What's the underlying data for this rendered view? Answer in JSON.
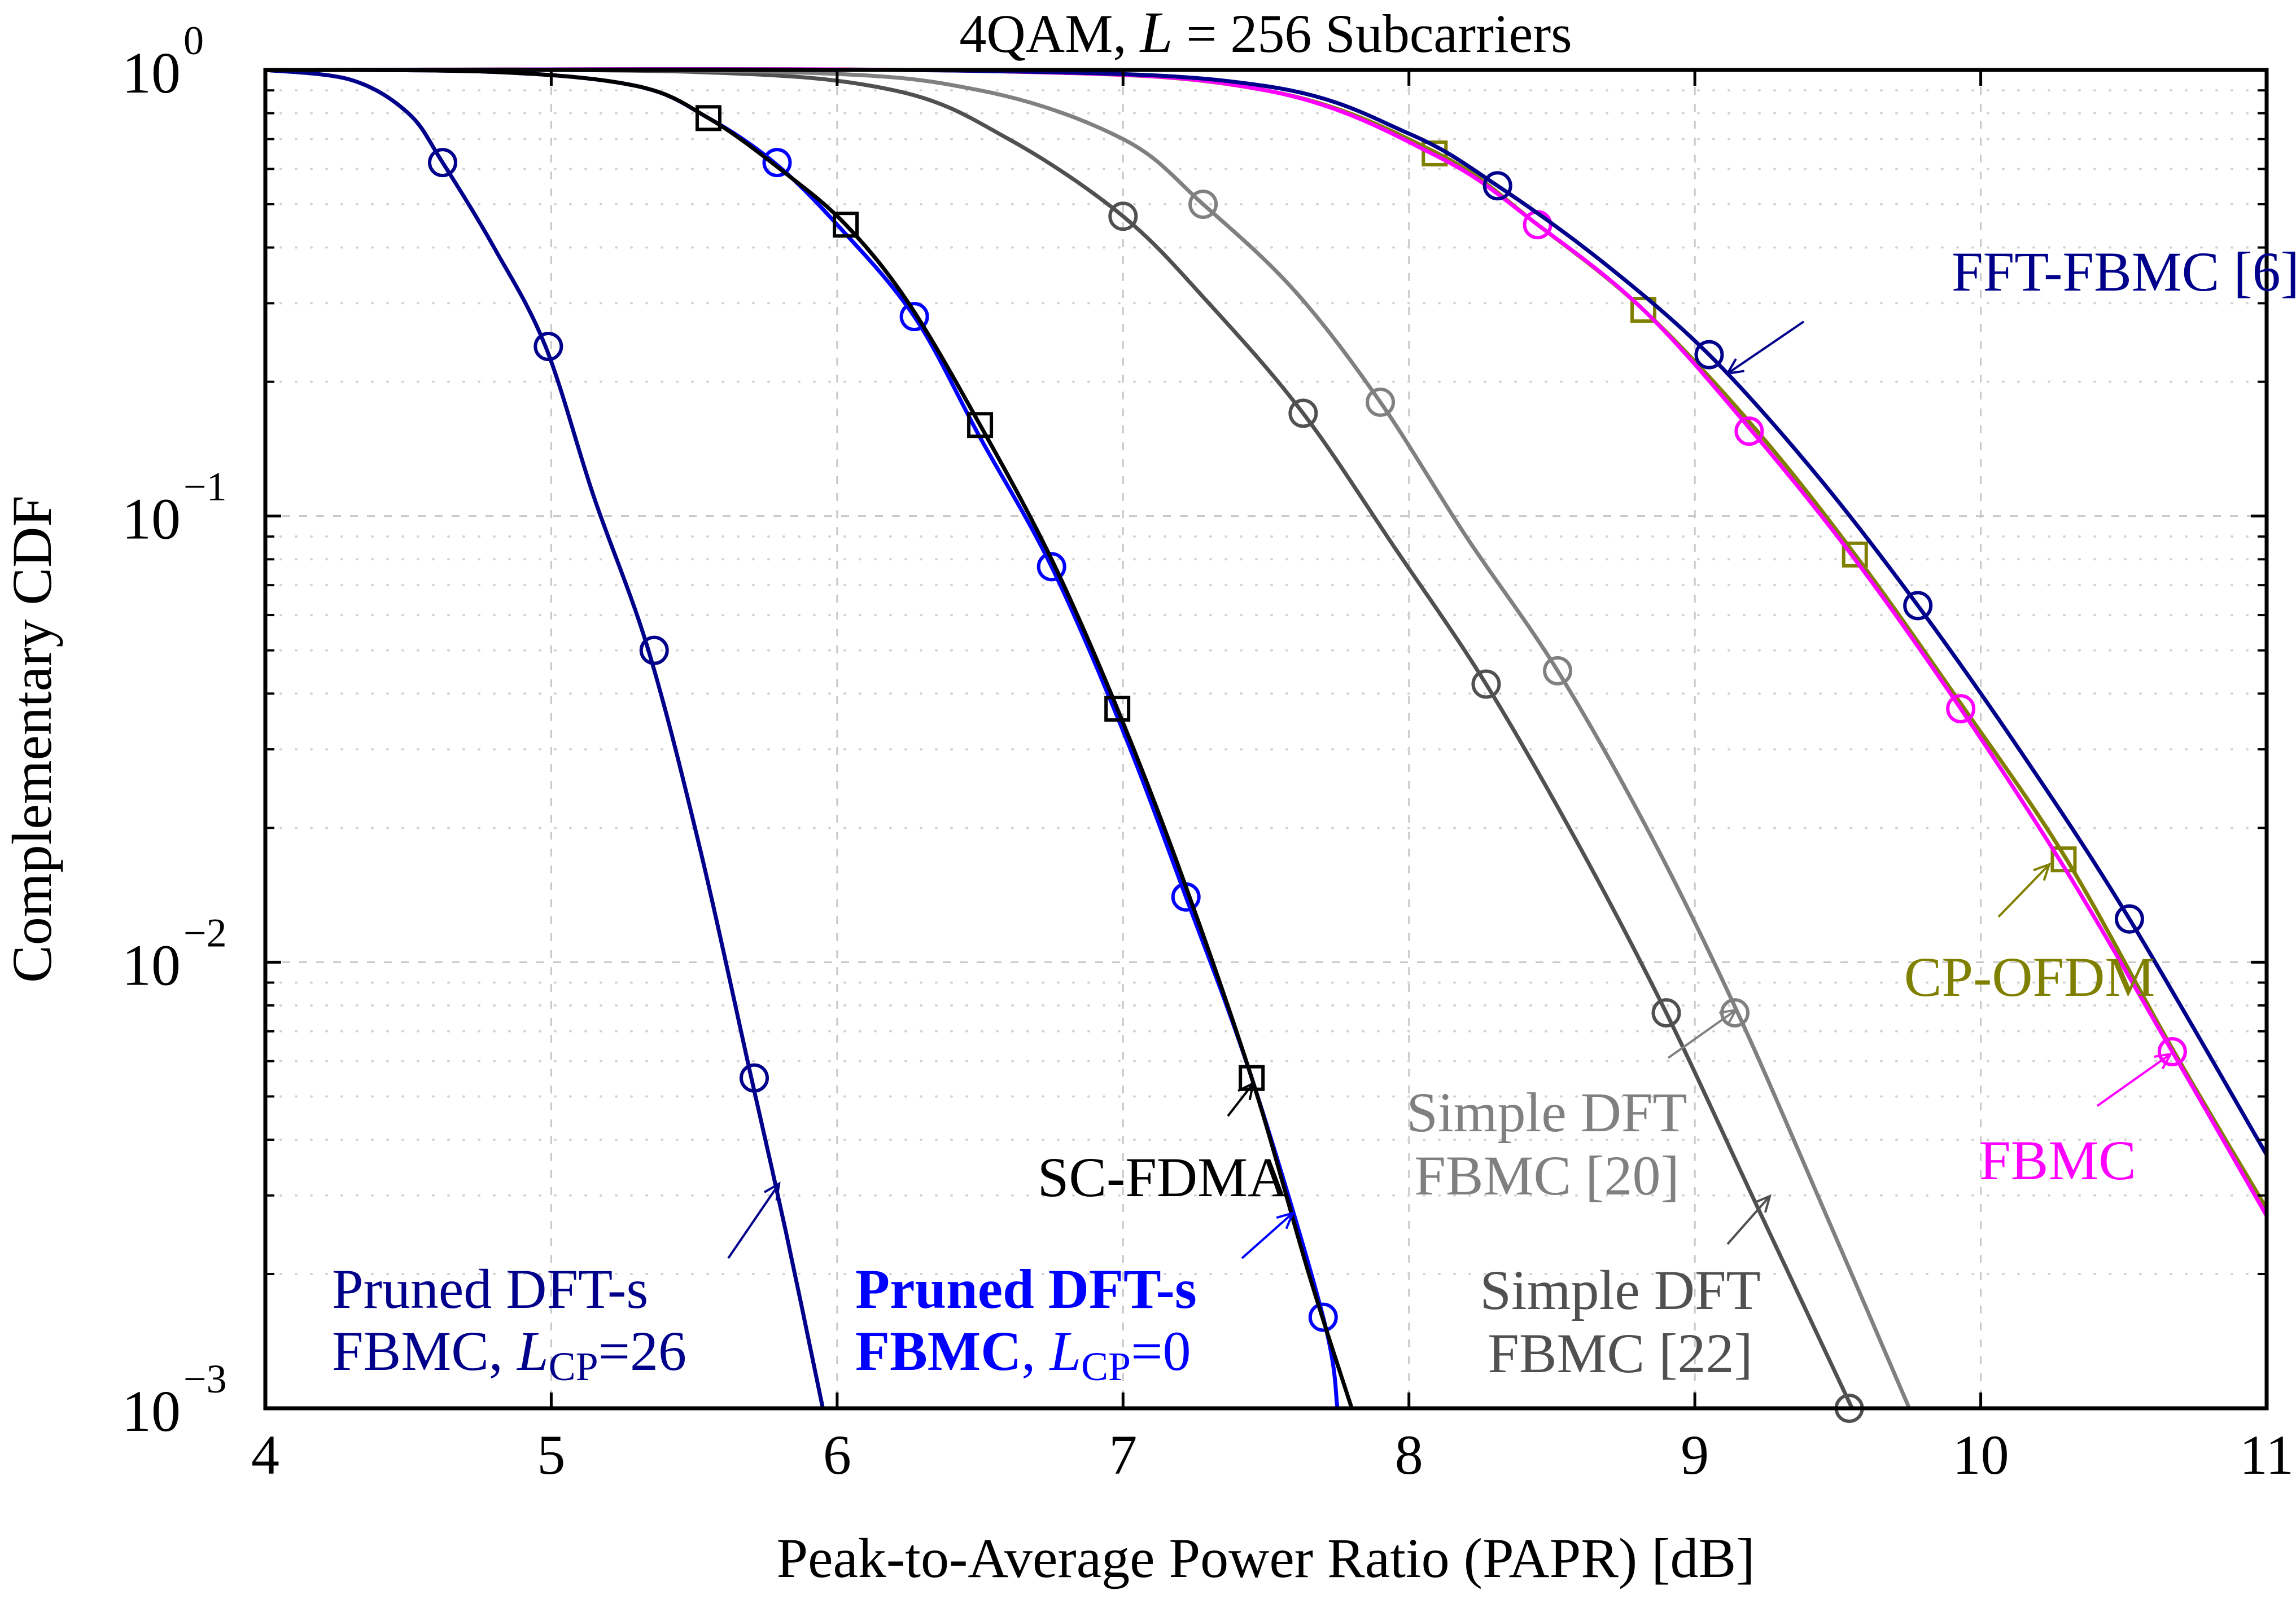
{
  "chart_data": {
    "type": "line",
    "title": "4QAM, L = 256 Subcarriers",
    "title_parts": [
      "4QAM, ",
      "L",
      " = ",
      "256",
      " Subcarriers"
    ],
    "xlabel": "Peak-to-Average Power Ratio (PAPR) [dB]",
    "ylabel": "Complementary CDF",
    "xlim": [
      4,
      11
    ],
    "ylim": [
      0.001,
      1
    ],
    "yscale": "log",
    "grid": true,
    "x_ticks": [
      4,
      5,
      6,
      7,
      8,
      9,
      10,
      11
    ],
    "x_tick_labels": [
      "4",
      "5",
      "6",
      "7",
      "8",
      "9",
      "10",
      "11"
    ],
    "y_ticks": [
      {
        "value": 1,
        "base": "10",
        "exp": "0"
      },
      {
        "value": 0.1,
        "base": "10",
        "exp": "−1"
      },
      {
        "value": 0.01,
        "base": "10",
        "exp": "−2"
      },
      {
        "value": 0.001,
        "base": "10",
        "exp": "−3"
      }
    ],
    "series": [
      {
        "name": "Pruned DFT-s FBMC, L_CP=26",
        "color": "#00008b",
        "marker": "circle",
        "x": [
          4.0,
          4.3,
          4.5,
          4.62,
          4.8,
          4.98,
          5.15,
          5.34,
          5.52,
          5.7,
          5.82,
          5.95
        ],
        "y": [
          1.0,
          0.95,
          0.8,
          0.62,
          0.4,
          0.24,
          0.11,
          0.05,
          0.018,
          0.0055,
          0.0025,
          0.001
        ],
        "markers": [
          [
            4.62,
            0.62
          ],
          [
            4.99,
            0.24
          ],
          [
            5.36,
            0.05
          ],
          [
            5.71,
            0.0055
          ]
        ]
      },
      {
        "name": "Pruned DFT-s FBMC, L_CP=0",
        "color": "#0000ff",
        "marker": "circle",
        "x": [
          4.0,
          4.8,
          5.3,
          5.55,
          5.78,
          6.0,
          6.27,
          6.5,
          6.75,
          7.0,
          7.22,
          7.45,
          7.7,
          7.75
        ],
        "y": [
          1.0,
          0.99,
          0.92,
          0.78,
          0.62,
          0.45,
          0.28,
          0.15,
          0.077,
          0.033,
          0.014,
          0.0055,
          0.0016,
          0.001
        ],
        "markers": [
          [
            5.79,
            0.62
          ],
          [
            6.27,
            0.28
          ],
          [
            6.75,
            0.077
          ],
          [
            7.22,
            0.014
          ],
          [
            7.7,
            0.0016
          ]
        ]
      },
      {
        "name": "SC-FDMA",
        "color": "#000000",
        "marker": "square",
        "x": [
          4.0,
          4.8,
          5.3,
          5.55,
          5.8,
          6.03,
          6.25,
          6.5,
          6.75,
          6.98,
          7.2,
          7.45,
          7.65,
          7.8
        ],
        "y": [
          1.0,
          0.99,
          0.92,
          0.78,
          0.6,
          0.45,
          0.3,
          0.16,
          0.08,
          0.037,
          0.016,
          0.0055,
          0.002,
          0.001
        ],
        "markers": [
          [
            5.55,
            0.78
          ],
          [
            6.03,
            0.45
          ],
          [
            6.5,
            0.16
          ],
          [
            6.98,
            0.037
          ],
          [
            7.45,
            0.0055
          ]
        ]
      },
      {
        "name": "Simple DFT FBMC [22]",
        "color": "#505050",
        "marker": "circle",
        "x": [
          4.0,
          5.5,
          6.2,
          6.6,
          7.0,
          7.3,
          7.63,
          7.95,
          8.27,
          8.6,
          8.9,
          9.2,
          9.55
        ],
        "y": [
          1.0,
          0.99,
          0.9,
          0.7,
          0.47,
          0.3,
          0.17,
          0.085,
          0.042,
          0.018,
          0.0077,
          0.003,
          0.001
        ],
        "markers": [
          [
            7.0,
            0.47
          ],
          [
            7.63,
            0.17
          ],
          [
            8.27,
            0.042
          ],
          [
            8.9,
            0.0077
          ],
          [
            9.54,
            0.001
          ]
        ]
      },
      {
        "name": "Simple DFT FBMC [20]",
        "color": "#808080",
        "marker": "circle",
        "x": [
          4.0,
          5.8,
          6.5,
          7.0,
          7.28,
          7.6,
          7.9,
          8.2,
          8.52,
          8.85,
          9.15,
          9.45,
          9.75
        ],
        "y": [
          1.0,
          0.99,
          0.9,
          0.7,
          0.5,
          0.32,
          0.18,
          0.09,
          0.045,
          0.019,
          0.0077,
          0.0028,
          0.001
        ],
        "markers": [
          [
            7.28,
            0.5
          ],
          [
            7.9,
            0.18
          ],
          [
            8.52,
            0.045
          ],
          [
            9.14,
            0.0077
          ]
        ]
      },
      {
        "name": "CP-OFDM",
        "color": "#808000",
        "marker": "square",
        "x": [
          4.0,
          6.5,
          7.5,
          8.1,
          8.45,
          8.82,
          9.2,
          9.56,
          9.93,
          10.3,
          10.67,
          11.0
        ],
        "y": [
          1.0,
          0.995,
          0.9,
          0.65,
          0.45,
          0.29,
          0.16,
          0.082,
          0.038,
          0.017,
          0.0064,
          0.0028
        ],
        "markers": [
          [
            8.09,
            0.65
          ],
          [
            8.82,
            0.29
          ],
          [
            9.56,
            0.082
          ],
          [
            10.29,
            0.017
          ]
        ]
      },
      {
        "name": "FBMC",
        "color": "#ff00ff",
        "marker": "circle",
        "x": [
          4.0,
          6.5,
          7.5,
          8.1,
          8.45,
          8.82,
          9.2,
          9.56,
          9.93,
          10.3,
          10.67,
          11.0
        ],
        "y": [
          1.0,
          0.995,
          0.9,
          0.64,
          0.45,
          0.29,
          0.155,
          0.08,
          0.037,
          0.016,
          0.0063,
          0.0027
        ],
        "markers": [
          [
            8.45,
            0.45
          ],
          [
            9.19,
            0.155
          ],
          [
            9.93,
            0.037
          ],
          [
            10.67,
            0.0063
          ]
        ]
      },
      {
        "name": "FFT-FBMC [6]",
        "color": "#00008b",
        "marker": "circle",
        "x": [
          4.0,
          6.5,
          7.5,
          8.0,
          8.31,
          8.68,
          9.05,
          9.42,
          9.78,
          10.15,
          10.52,
          11.0
        ],
        "y": [
          1.0,
          0.995,
          0.92,
          0.72,
          0.55,
          0.37,
          0.23,
          0.125,
          0.063,
          0.029,
          0.0125,
          0.0037
        ],
        "markers": [
          [
            8.31,
            0.55
          ],
          [
            9.05,
            0.23
          ],
          [
            9.78,
            0.063
          ],
          [
            10.52,
            0.0125
          ]
        ]
      }
    ],
    "annotations": [
      {
        "id": "fft-fbmc",
        "lines": [
          [
            {
              "t": "FFT-FBMC [6]"
            }
          ]
        ],
        "color": "#00008b",
        "bold": false
      },
      {
        "id": "cp-ofdm",
        "lines": [
          [
            {
              "t": "CP-OFDM"
            }
          ]
        ],
        "color": "#808000",
        "bold": false
      },
      {
        "id": "fbmc",
        "lines": [
          [
            {
              "t": "FBMC"
            }
          ]
        ],
        "color": "#ff00ff",
        "bold": false
      },
      {
        "id": "sc-fdma",
        "lines": [
          [
            {
              "t": "SC-FDMA"
            }
          ]
        ],
        "color": "#000000",
        "bold": false
      },
      {
        "id": "simple-dft-20",
        "lines": [
          [
            {
              "t": "Simple DFT"
            }
          ],
          [
            {
              "t": "FBMC [20]"
            }
          ]
        ],
        "color": "#808080",
        "bold": false
      },
      {
        "id": "simple-dft-22",
        "lines": [
          [
            {
              "t": "Simple DFT"
            }
          ],
          [
            {
              "t": "FBMC [22]"
            }
          ]
        ],
        "color": "#505050",
        "bold": false
      },
      {
        "id": "pruned-26",
        "lines": [
          [
            {
              "t": "Pruned DFT-s"
            }
          ],
          [
            {
              "t": "FBMC, "
            },
            {
              "t": "L",
              "i": true
            },
            {
              "t": "CP",
              "sub": true
            },
            {
              "t": "=26"
            }
          ]
        ],
        "color": "#00008b",
        "bold": false
      },
      {
        "id": "pruned-0",
        "lines": [
          [
            {
              "t": "Pruned DFT-s",
              "b": true
            }
          ],
          [
            {
              "t": "FBMC",
              "b": true
            },
            {
              "t": ", "
            },
            {
              "t": "L",
              "i": true
            },
            {
              "t": "CP",
              "sub": true
            },
            {
              "t": "=0"
            }
          ]
        ],
        "color": "#0000ff",
        "bold": true
      }
    ]
  }
}
